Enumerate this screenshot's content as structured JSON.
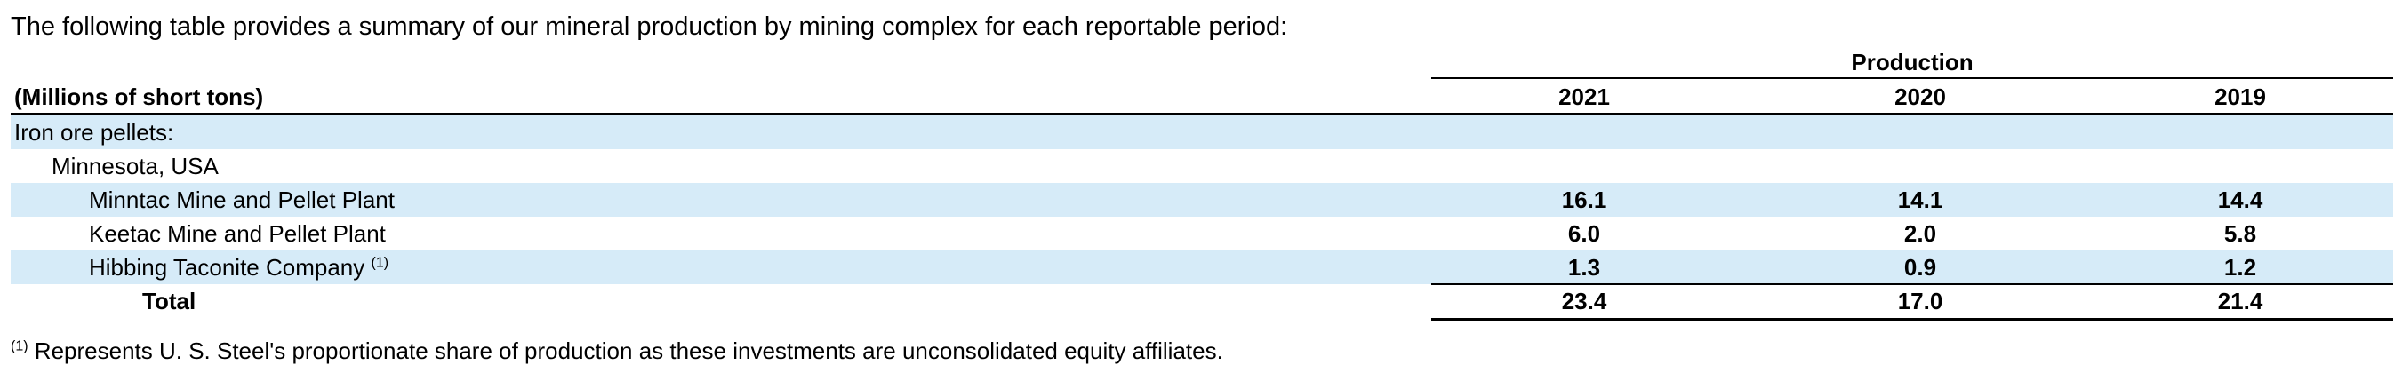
{
  "intro": "The following table provides a summary of our mineral production by mining complex for each reportable period:",
  "table": {
    "group_header": "Production",
    "header": {
      "label": "(Millions of short tons)",
      "years": [
        "2021",
        "2020",
        "2019"
      ]
    },
    "section": "Iron ore pellets:",
    "region": "Minnesota, USA",
    "rows": [
      {
        "label": "Minntac Mine and Pellet Plant",
        "footnote": "",
        "values": [
          "16.1",
          "14.1",
          "14.4"
        ]
      },
      {
        "label": "Keetac Mine and Pellet Plant",
        "footnote": "",
        "values": [
          "6.0",
          "2.0",
          "5.8"
        ]
      },
      {
        "label": "Hibbing Taconite Company",
        "footnote": "(1)",
        "values": [
          "1.3",
          "0.9",
          "1.2"
        ]
      }
    ],
    "total": {
      "label": "Total",
      "values": [
        "23.4",
        "17.0",
        "21.4"
      ]
    }
  },
  "footnote": {
    "marker": "(1)",
    "text": "Represents U. S. Steel's proportionate share of production as these investments are unconsolidated equity affiliates."
  },
  "colors": {
    "row_shade": "#d6ebf8",
    "text": "#000000",
    "rule": "#000000"
  }
}
